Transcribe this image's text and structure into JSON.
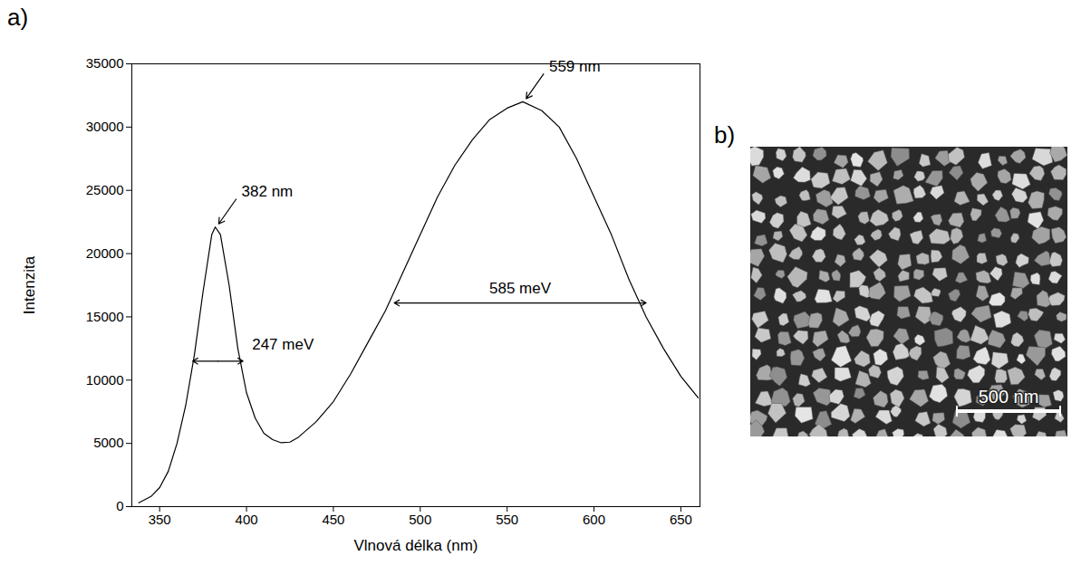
{
  "chart_data": {
    "type": "line",
    "panel_label": "a)",
    "x_label": "Vlnová délka (nm)",
    "y_label": "Intenzita",
    "color": "#000000",
    "xlim": [
      334,
      661
    ],
    "xticks": [
      350,
      400,
      450,
      500,
      550,
      600,
      650
    ],
    "ylim": [
      0,
      35000
    ],
    "yticks": [
      0,
      5000,
      10000,
      15000,
      20000,
      25000,
      30000,
      35000
    ],
    "grid": false,
    "x": [
      338,
      345,
      350,
      355,
      360,
      365,
      370,
      375,
      380,
      382,
      385,
      390,
      395,
      400,
      405,
      410,
      415,
      420,
      425,
      430,
      440,
      450,
      460,
      470,
      480,
      490,
      500,
      510,
      520,
      530,
      540,
      550,
      559,
      570,
      580,
      590,
      600,
      610,
      620,
      630,
      640,
      650,
      660
    ],
    "values": [
      300,
      800,
      1500,
      2800,
      5000,
      8000,
      12000,
      17000,
      21500,
      22100,
      21500,
      17500,
      12500,
      9000,
      7000,
      5800,
      5300,
      5050,
      5100,
      5500,
      6700,
      8300,
      10500,
      13000,
      15500,
      18500,
      21500,
      24500,
      27000,
      29000,
      30600,
      31500,
      32000,
      31300,
      30000,
      27500,
      24500,
      21500,
      18000,
      15000,
      12500,
      10300,
      8600
    ],
    "annotations": [
      {
        "type": "peak",
        "label": "382 nm",
        "x": 382,
        "y": 22100
      },
      {
        "type": "peak",
        "label": "559 nm",
        "x": 559,
        "y": 32000
      },
      {
        "type": "width",
        "label": "247 meV",
        "x1": 369,
        "x2": 398,
        "y": 11500
      },
      {
        "type": "width",
        "label": "585 meV",
        "x1": 485,
        "x2": 630,
        "y": 16100
      }
    ]
  },
  "image_panel": {
    "panel_label": "b)",
    "scale_bar": "500 nm"
  }
}
